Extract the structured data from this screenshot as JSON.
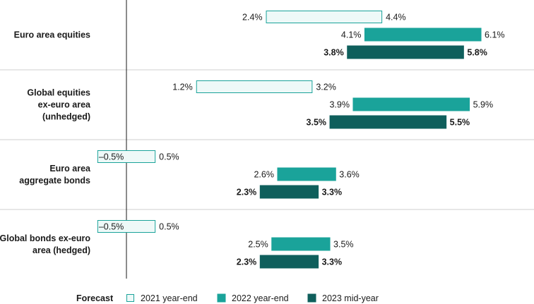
{
  "chart_data": {
    "type": "range-bar",
    "orientation": "horizontal",
    "title": "",
    "xlabel": "",
    "ylabel": "",
    "xlim": [
      -0.5,
      6.1
    ],
    "grid": false,
    "legend": {
      "title": "Forecast",
      "placement": "bottom",
      "entries": [
        "2021 year-end",
        "2022 year-end",
        "2023 mid-year"
      ]
    },
    "categories": [
      {
        "label_lines": [
          "Euro area equities"
        ]
      },
      {
        "label_lines": [
          "Global equities",
          "ex-euro area",
          "(unhedged)"
        ]
      },
      {
        "label_lines": [
          "Euro area",
          "aggregate bonds"
        ]
      },
      {
        "label_lines": [
          "Global bonds ex-euro",
          "area (hedged)"
        ]
      }
    ],
    "series": [
      {
        "name": "2021 year-end",
        "fill": "#ffffff",
        "stroke": "#1aa39a",
        "bold_labels": false,
        "ranges": [
          {
            "low": 2.4,
            "high": 4.4,
            "low_label": "2.4%",
            "high_label": "4.4%"
          },
          {
            "low": 1.2,
            "high": 3.2,
            "low_label": "1.2%",
            "high_label": "3.2%"
          },
          {
            "low": -0.5,
            "high": 0.5,
            "low_label": "–0.5%",
            "high_label": "0.5%"
          },
          {
            "low": -0.5,
            "high": 0.5,
            "low_label": "–0.5%",
            "high_label": "0.5%"
          }
        ]
      },
      {
        "name": "2022 year-end",
        "fill": "#1aa39a",
        "stroke": "#1aa39a",
        "bold_labels": false,
        "ranges": [
          {
            "low": 4.1,
            "high": 6.1,
            "low_label": "4.1%",
            "high_label": "6.1%"
          },
          {
            "low": 3.9,
            "high": 5.9,
            "low_label": "3.9%",
            "high_label": "5.9%"
          },
          {
            "low": 2.6,
            "high": 3.6,
            "low_label": "2.6%",
            "high_label": "3.6%"
          },
          {
            "low": 2.5,
            "high": 3.5,
            "low_label": "2.5%",
            "high_label": "3.5%"
          }
        ]
      },
      {
        "name": "2023 mid-year",
        "fill": "#0f5f5c",
        "stroke": "#0f5f5c",
        "bold_labels": true,
        "ranges": [
          {
            "low": 3.8,
            "high": 5.8,
            "low_label": "3.8%",
            "high_label": "5.8%"
          },
          {
            "low": 3.5,
            "high": 5.5,
            "low_label": "3.5%",
            "high_label": "5.5%"
          },
          {
            "low": 2.3,
            "high": 3.3,
            "low_label": "2.3%",
            "high_label": "3.3%"
          },
          {
            "low": 2.3,
            "high": 3.3,
            "low_label": "2.3%",
            "high_label": "3.3%"
          }
        ]
      }
    ],
    "colors": {
      "separator": "#cfcfcf",
      "axis": "#1a1a1a",
      "light_fill": "#eef9f8"
    }
  }
}
